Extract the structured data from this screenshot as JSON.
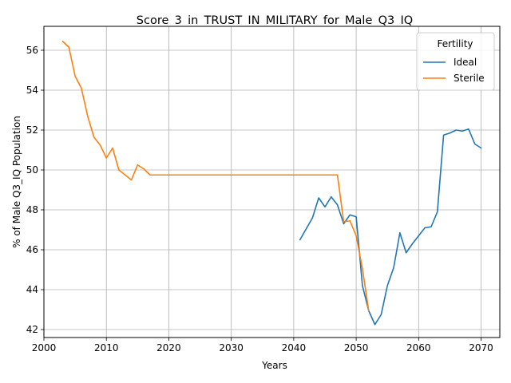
{
  "chart_data": {
    "type": "line",
    "title": "Score_3_in_TRUST_IN_MILITARY_for_Male_Q3_IQ",
    "xlabel": "Years",
    "ylabel": "% of Male Q3_IQ Population",
    "xlim": [
      2000,
      2073
    ],
    "ylim": [
      41.6,
      57.2
    ],
    "xticks": [
      2000,
      2010,
      2020,
      2030,
      2040,
      2050,
      2060,
      2070
    ],
    "yticks": [
      42,
      44,
      46,
      48,
      50,
      52,
      54,
      56
    ],
    "grid": true,
    "legend": {
      "title": "Fertility",
      "placement": "top-right"
    },
    "series": [
      {
        "name": "Ideal",
        "color": "#1f77b4",
        "x": [
          2041,
          2042,
          2043,
          2044,
          2045,
          2046,
          2047,
          2048,
          2049,
          2050,
          2051,
          2052,
          2053,
          2054,
          2055,
          2056,
          2057,
          2058,
          2059,
          2060,
          2061,
          2062,
          2063,
          2064,
          2065,
          2066,
          2067,
          2068,
          2069,
          2070
        ],
        "y": [
          46.5,
          47.05,
          47.6,
          48.6,
          48.15,
          48.65,
          48.25,
          47.3,
          47.75,
          47.65,
          44.2,
          42.95,
          42.25,
          42.75,
          44.2,
          45.1,
          46.85,
          45.85,
          46.3,
          46.7,
          47.1,
          47.15,
          47.9,
          51.75,
          51.85,
          52.0,
          51.95,
          52.05,
          51.3,
          51.1
        ]
      },
      {
        "name": "Sterile",
        "color": "#ff7f0e",
        "x": [
          2003,
          2004,
          2005,
          2006,
          2007,
          2008,
          2009,
          2010,
          2011,
          2012,
          2013,
          2014,
          2015,
          2016,
          2017,
          2020,
          2025,
          2030,
          2035,
          2040,
          2045,
          2047,
          2048,
          2049,
          2050,
          2051,
          2052
        ],
        "y": [
          56.45,
          56.15,
          54.7,
          54.1,
          52.7,
          51.65,
          51.25,
          50.6,
          51.1,
          50.0,
          49.75,
          49.5,
          50.25,
          50.05,
          49.75,
          49.75,
          49.75,
          49.75,
          49.75,
          49.75,
          49.75,
          49.75,
          47.4,
          47.45,
          46.7,
          45.05,
          42.95
        ]
      }
    ]
  }
}
